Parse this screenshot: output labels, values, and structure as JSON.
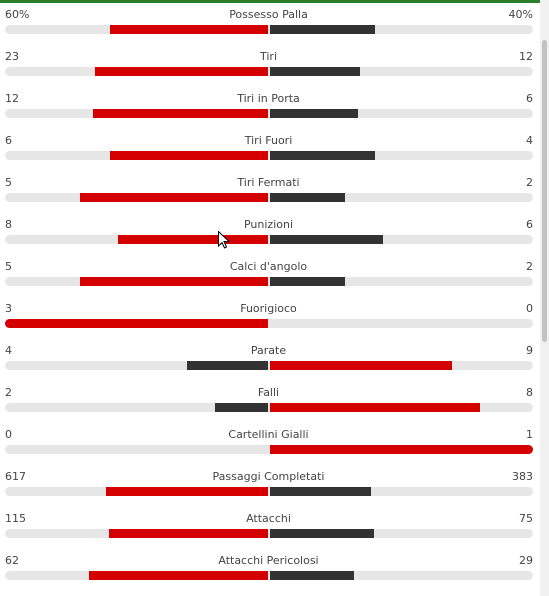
{
  "colors": {
    "home": "#d40000",
    "away": "#333333",
    "track": "#e6e6e6",
    "accent": "#2a7d2a"
  },
  "stats": [
    {
      "label": "Possesso Palla",
      "home": "60%",
      "away": "40%",
      "home_n": 60,
      "away_n": 40,
      "leader": "home"
    },
    {
      "label": "Tiri",
      "home": "23",
      "away": "12",
      "home_n": 23,
      "away_n": 12,
      "leader": "home"
    },
    {
      "label": "Tiri in Porta",
      "home": "12",
      "away": "6",
      "home_n": 12,
      "away_n": 6,
      "leader": "home"
    },
    {
      "label": "Tiri Fuori",
      "home": "6",
      "away": "4",
      "home_n": 6,
      "away_n": 4,
      "leader": "home"
    },
    {
      "label": "Tiri Fermati",
      "home": "5",
      "away": "2",
      "home_n": 5,
      "away_n": 2,
      "leader": "home"
    },
    {
      "label": "Punizioni",
      "home": "8",
      "away": "6",
      "home_n": 8,
      "away_n": 6,
      "leader": "home"
    },
    {
      "label": "Calci d'angolo",
      "home": "5",
      "away": "2",
      "home_n": 5,
      "away_n": 2,
      "leader": "home"
    },
    {
      "label": "Fuorigioco",
      "home": "3",
      "away": "0",
      "home_n": 3,
      "away_n": 0,
      "leader": "home"
    },
    {
      "label": "Parate",
      "home": "4",
      "away": "9",
      "home_n": 4,
      "away_n": 9,
      "leader": "away"
    },
    {
      "label": "Falli",
      "home": "2",
      "away": "8",
      "home_n": 2,
      "away_n": 8,
      "leader": "away"
    },
    {
      "label": "Cartellini Gialli",
      "home": "0",
      "away": "1",
      "home_n": 0,
      "away_n": 1,
      "leader": "away"
    },
    {
      "label": "Passaggi Completati",
      "home": "617",
      "away": "383",
      "home_n": 617,
      "away_n": 383,
      "leader": "home"
    },
    {
      "label": "Attacchi",
      "home": "115",
      "away": "75",
      "home_n": 115,
      "away_n": 75,
      "leader": "home"
    },
    {
      "label": "Attacchi Pericolosi",
      "home": "62",
      "away": "29",
      "home_n": 62,
      "away_n": 29,
      "leader": "home"
    }
  ]
}
